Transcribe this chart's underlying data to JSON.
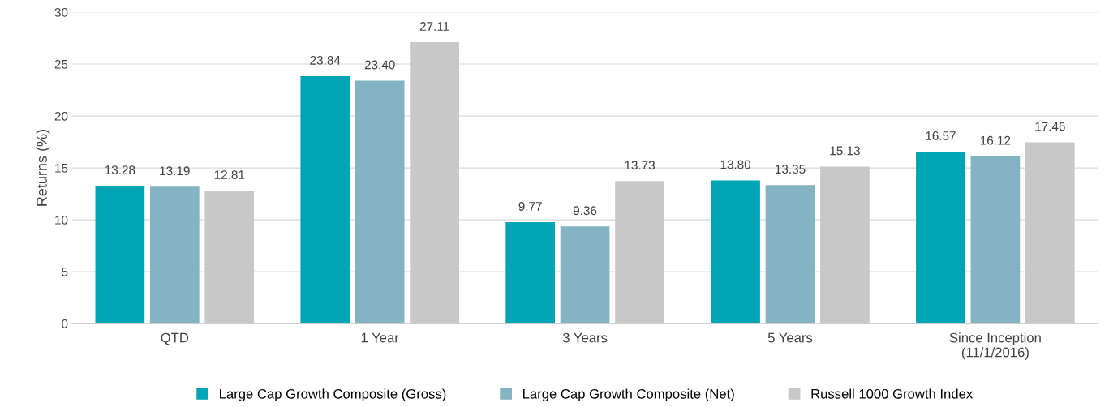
{
  "chart_data": {
    "type": "bar",
    "ylabel": "Returns (%)",
    "categories": [
      "QTD",
      "1 Year",
      "3 Years",
      "5 Years",
      "Since Inception\n(11/1/2016)"
    ],
    "series": [
      {
        "name": "Large Cap Growth Composite (Gross)",
        "color": "#00a5b5",
        "values": [
          13.28,
          23.84,
          9.77,
          13.8,
          16.57
        ],
        "value_labels": [
          "13.28",
          "23.84",
          "9.77",
          "13.80",
          "16.57"
        ]
      },
      {
        "name": "Large Cap Growth Composite (Net)",
        "color": "#84b3c3",
        "values": [
          13.19,
          23.4,
          9.36,
          13.35,
          16.12
        ],
        "value_labels": [
          "13.19",
          "23.40",
          "9.36",
          "13.35",
          "16.12"
        ]
      },
      {
        "name": "Russell 1000 Growth Index",
        "color": "#c8c8c8",
        "values": [
          12.81,
          27.11,
          13.73,
          15.13,
          17.46
        ],
        "value_labels": [
          "12.81",
          "27.11",
          "13.73",
          "15.13",
          "17.46"
        ]
      }
    ],
    "ylim": [
      0,
      30
    ],
    "yticks": [
      0,
      5,
      10,
      15,
      20,
      25,
      30
    ],
    "grid": "y",
    "legend": "bottom"
  }
}
